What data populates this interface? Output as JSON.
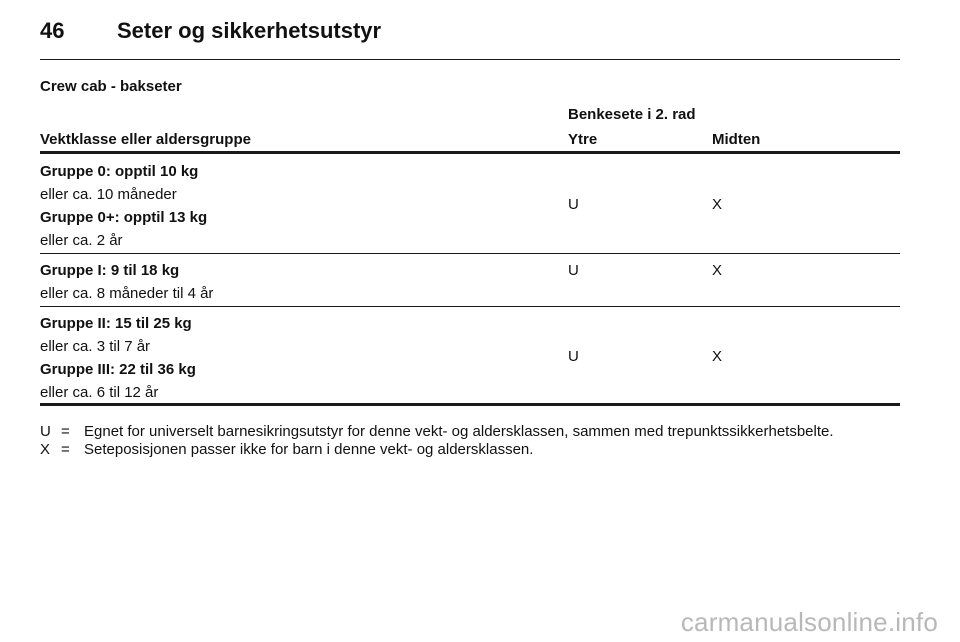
{
  "header": {
    "page_number": "46",
    "chapter_title": "Seter og sikkerhetsutstyr"
  },
  "section_title": "Crew cab - bakseter",
  "table": {
    "group_header": "Benkesete i 2. rad",
    "columns": {
      "weight_class": "Vektklasse eller aldersgruppe",
      "outer": "Ytre",
      "middle": "Midten"
    },
    "rows": [
      {
        "lines": [
          {
            "text": "Gruppe 0: opptil 10 kg",
            "bold": true
          },
          {
            "text": "eller ca. 10 måneder",
            "bold": false
          },
          {
            "text": "Gruppe 0+: opptil 13 kg",
            "bold": true
          },
          {
            "text": "eller ca. 2 år",
            "bold": false
          }
        ],
        "outer": "U",
        "middle": "X"
      },
      {
        "lines": [
          {
            "text": "Gruppe I: 9 til 18 kg",
            "bold": true
          },
          {
            "text": "eller ca. 8 måneder til 4 år",
            "bold": false
          }
        ],
        "outer": "U",
        "middle": "X"
      },
      {
        "lines": [
          {
            "text": "Gruppe II: 15 til 25 kg",
            "bold": true
          },
          {
            "text": "eller ca. 3 til 7 år",
            "bold": false
          },
          {
            "text": "Gruppe III: 22 til 36 kg",
            "bold": true
          },
          {
            "text": "eller ca. 6 til 12 år",
            "bold": false
          }
        ],
        "outer": "U",
        "middle": "X"
      }
    ]
  },
  "legend": [
    {
      "key": "U",
      "eq": "=",
      "text": "Egnet for universelt barnesikringsutstyr for denne vekt- og aldersklassen, sammen med trepunktssikkerhetsbelte."
    },
    {
      "key": "X",
      "eq": "=",
      "text": "Seteposisjonen passer ikke for barn i denne vekt- og aldersklassen."
    }
  ],
  "watermark": "carmanualsonline.info"
}
